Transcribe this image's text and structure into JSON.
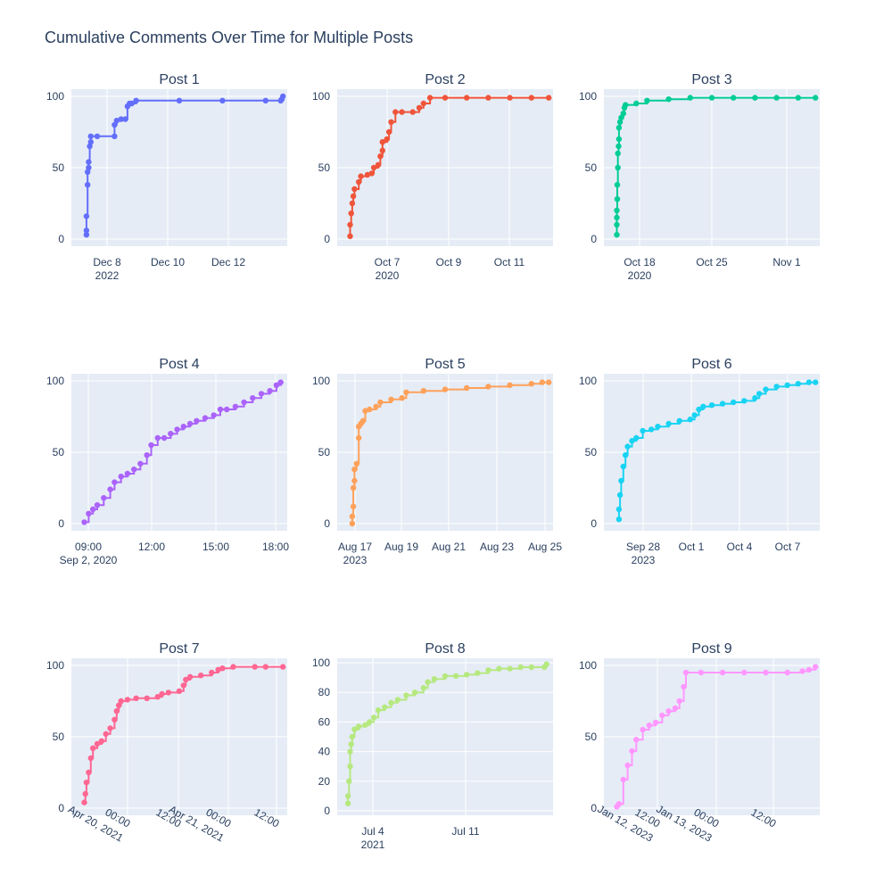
{
  "title": "Cumulative Comments Over Time for Multiple Posts",
  "chart_data": [
    {
      "type": "line",
      "title": "Post 1",
      "color": "#636efa",
      "xticks": [
        {
          "label": "Dec 8",
          "sub": "2022"
        },
        {
          "label": "Dec 10"
        },
        {
          "label": "Dec 12"
        }
      ],
      "yticks": [
        "0",
        "50",
        "100"
      ],
      "ylim": [
        -5,
        105
      ],
      "points": [
        [
          0.07,
          3
        ],
        [
          0.07,
          6
        ],
        [
          0.07,
          16
        ],
        [
          0.075,
          38
        ],
        [
          0.075,
          47
        ],
        [
          0.08,
          50
        ],
        [
          0.08,
          54
        ],
        [
          0.085,
          65
        ],
        [
          0.09,
          68
        ],
        [
          0.09,
          72
        ],
        [
          0.12,
          72
        ],
        [
          0.2,
          72
        ],
        [
          0.2,
          80
        ],
        [
          0.21,
          83
        ],
        [
          0.23,
          84
        ],
        [
          0.25,
          84
        ],
        [
          0.26,
          93
        ],
        [
          0.27,
          95
        ],
        [
          0.28,
          95
        ],
        [
          0.3,
          97
        ],
        [
          0.5,
          97
        ],
        [
          0.7,
          97
        ],
        [
          0.9,
          97
        ],
        [
          0.97,
          97
        ],
        [
          0.975,
          98
        ],
        [
          0.98,
          100
        ]
      ]
    },
    {
      "type": "line",
      "title": "Post 2",
      "color": "#ef553b",
      "xticks": [
        {
          "label": "Oct 7",
          "sub": "2020"
        },
        {
          "label": "Oct 9"
        },
        {
          "label": "Oct 11"
        }
      ],
      "yticks": [
        "0",
        "50",
        "100"
      ],
      "ylim": [
        -5,
        105
      ],
      "points": [
        [
          0.06,
          2
        ],
        [
          0.06,
          10
        ],
        [
          0.065,
          18
        ],
        [
          0.07,
          25
        ],
        [
          0.075,
          30
        ],
        [
          0.08,
          35
        ],
        [
          0.1,
          40
        ],
        [
          0.11,
          44
        ],
        [
          0.14,
          45
        ],
        [
          0.16,
          46
        ],
        [
          0.17,
          50
        ],
        [
          0.19,
          52
        ],
        [
          0.2,
          58
        ],
        [
          0.21,
          62
        ],
        [
          0.21,
          68
        ],
        [
          0.23,
          70
        ],
        [
          0.24,
          75
        ],
        [
          0.25,
          82
        ],
        [
          0.27,
          89
        ],
        [
          0.3,
          89
        ],
        [
          0.35,
          89
        ],
        [
          0.38,
          92
        ],
        [
          0.4,
          95
        ],
        [
          0.43,
          99
        ],
        [
          0.5,
          99
        ],
        [
          0.6,
          99
        ],
        [
          0.7,
          99
        ],
        [
          0.8,
          99
        ],
        [
          0.9,
          99
        ],
        [
          0.98,
          99
        ]
      ]
    },
    {
      "type": "line",
      "title": "Post 3",
      "color": "#00cc96",
      "xticks": [
        {
          "label": "Oct 18",
          "sub": "2020"
        },
        {
          "label": "Oct 25"
        },
        {
          "label": "Nov 1"
        }
      ],
      "yticks": [
        "0",
        "50",
        "100"
      ],
      "ylim": [
        -5,
        105
      ],
      "points": [
        [
          0.06,
          3
        ],
        [
          0.06,
          10
        ],
        [
          0.06,
          15
        ],
        [
          0.06,
          20
        ],
        [
          0.062,
          28
        ],
        [
          0.062,
          38
        ],
        [
          0.065,
          50
        ],
        [
          0.065,
          60
        ],
        [
          0.068,
          65
        ],
        [
          0.07,
          70
        ],
        [
          0.07,
          78
        ],
        [
          0.075,
          82
        ],
        [
          0.08,
          85
        ],
        [
          0.09,
          88
        ],
        [
          0.095,
          92
        ],
        [
          0.1,
          94
        ],
        [
          0.15,
          95
        ],
        [
          0.2,
          97
        ],
        [
          0.3,
          98
        ],
        [
          0.4,
          99
        ],
        [
          0.5,
          99
        ],
        [
          0.6,
          99
        ],
        [
          0.7,
          99
        ],
        [
          0.8,
          99
        ],
        [
          0.9,
          99
        ],
        [
          0.98,
          99
        ]
      ]
    },
    {
      "type": "line",
      "title": "Post 4",
      "color": "#ab63fa",
      "xticks": [
        {
          "label": "09:00",
          "sub": "Sep 2, 2020"
        },
        {
          "label": "12:00"
        },
        {
          "label": "15:00"
        },
        {
          "label": "18:00"
        }
      ],
      "yticks": [
        "0",
        "50",
        "100"
      ],
      "ylim": [
        -5,
        105
      ],
      "points": [
        [
          0.06,
          1
        ],
        [
          0.08,
          7
        ],
        [
          0.1,
          10
        ],
        [
          0.12,
          13
        ],
        [
          0.15,
          18
        ],
        [
          0.18,
          24
        ],
        [
          0.2,
          29
        ],
        [
          0.23,
          33
        ],
        [
          0.26,
          35
        ],
        [
          0.29,
          38
        ],
        [
          0.32,
          42
        ],
        [
          0.35,
          48
        ],
        [
          0.37,
          55
        ],
        [
          0.4,
          60
        ],
        [
          0.43,
          60
        ],
        [
          0.46,
          63
        ],
        [
          0.49,
          66
        ],
        [
          0.52,
          68
        ],
        [
          0.55,
          70
        ],
        [
          0.58,
          72
        ],
        [
          0.62,
          74
        ],
        [
          0.66,
          76
        ],
        [
          0.69,
          80
        ],
        [
          0.72,
          80
        ],
        [
          0.76,
          82
        ],
        [
          0.8,
          85
        ],
        [
          0.84,
          88
        ],
        [
          0.88,
          91
        ],
        [
          0.92,
          93
        ],
        [
          0.95,
          97
        ],
        [
          0.97,
          99
        ]
      ]
    },
    {
      "type": "line",
      "title": "Post 5",
      "color": "#ffa15a",
      "xticks": [
        {
          "label": "Aug 17",
          "sub": "2023"
        },
        {
          "label": "Aug 19"
        },
        {
          "label": "Aug 21"
        },
        {
          "label": "Aug 23"
        },
        {
          "label": "Aug 25"
        }
      ],
      "yticks": [
        "0",
        "50",
        "100"
      ],
      "ylim": [
        -5,
        105
      ],
      "points": [
        [
          0.07,
          0
        ],
        [
          0.07,
          5
        ],
        [
          0.075,
          12
        ],
        [
          0.075,
          25
        ],
        [
          0.08,
          30
        ],
        [
          0.08,
          38
        ],
        [
          0.09,
          42
        ],
        [
          0.1,
          60
        ],
        [
          0.1,
          68
        ],
        [
          0.11,
          70
        ],
        [
          0.12,
          72
        ],
        [
          0.13,
          79
        ],
        [
          0.15,
          80
        ],
        [
          0.18,
          82
        ],
        [
          0.2,
          85
        ],
        [
          0.25,
          87
        ],
        [
          0.3,
          88
        ],
        [
          0.32,
          92
        ],
        [
          0.4,
          93
        ],
        [
          0.5,
          94
        ],
        [
          0.6,
          95
        ],
        [
          0.7,
          96
        ],
        [
          0.8,
          97
        ],
        [
          0.9,
          98
        ],
        [
          0.95,
          99
        ],
        [
          0.98,
          99
        ]
      ]
    },
    {
      "type": "line",
      "title": "Post 6",
      "color": "#19d3f3",
      "xticks": [
        {
          "label": "Sep 28",
          "sub": "2023"
        },
        {
          "label": "Oct 1"
        },
        {
          "label": "Oct 4"
        },
        {
          "label": "Oct 7"
        }
      ],
      "yticks": [
        "0",
        "50",
        "100"
      ],
      "ylim": [
        -5,
        105
      ],
      "points": [
        [
          0.07,
          3
        ],
        [
          0.07,
          10
        ],
        [
          0.075,
          20
        ],
        [
          0.08,
          30
        ],
        [
          0.09,
          40
        ],
        [
          0.1,
          48
        ],
        [
          0.11,
          54
        ],
        [
          0.13,
          58
        ],
        [
          0.15,
          60
        ],
        [
          0.18,
          65
        ],
        [
          0.22,
          66
        ],
        [
          0.25,
          68
        ],
        [
          0.3,
          70
        ],
        [
          0.35,
          72
        ],
        [
          0.4,
          73
        ],
        [
          0.42,
          76
        ],
        [
          0.44,
          80
        ],
        [
          0.46,
          82
        ],
        [
          0.5,
          83
        ],
        [
          0.55,
          84
        ],
        [
          0.6,
          85
        ],
        [
          0.65,
          86
        ],
        [
          0.7,
          88
        ],
        [
          0.72,
          91
        ],
        [
          0.75,
          94
        ],
        [
          0.8,
          96
        ],
        [
          0.85,
          97
        ],
        [
          0.9,
          98
        ],
        [
          0.95,
          99
        ],
        [
          0.98,
          99
        ]
      ]
    },
    {
      "type": "line",
      "title": "Post 7",
      "color": "#ff6692",
      "xticks": [
        {
          "label": "00:00",
          "sub": "Apr 20, 2021"
        },
        {
          "label": "12:00"
        },
        {
          "label": "00:00",
          "sub": "Apr 21, 2021"
        },
        {
          "label": "12:00"
        }
      ],
      "yticks": [
        "0",
        "50",
        "100"
      ],
      "ylim": [
        -5,
        105
      ],
      "points": [
        [
          0.06,
          4
        ],
        [
          0.065,
          10
        ],
        [
          0.07,
          18
        ],
        [
          0.08,
          25
        ],
        [
          0.09,
          35
        ],
        [
          0.1,
          42
        ],
        [
          0.12,
          45
        ],
        [
          0.14,
          47
        ],
        [
          0.16,
          52
        ],
        [
          0.18,
          56
        ],
        [
          0.2,
          62
        ],
        [
          0.21,
          68
        ],
        [
          0.22,
          72
        ],
        [
          0.23,
          75
        ],
        [
          0.26,
          76
        ],
        [
          0.3,
          77
        ],
        [
          0.35,
          77
        ],
        [
          0.4,
          78
        ],
        [
          0.42,
          80
        ],
        [
          0.45,
          81
        ],
        [
          0.5,
          82
        ],
        [
          0.52,
          86
        ],
        [
          0.53,
          90
        ],
        [
          0.55,
          92
        ],
        [
          0.6,
          93
        ],
        [
          0.65,
          95
        ],
        [
          0.68,
          97
        ],
        [
          0.7,
          98
        ],
        [
          0.75,
          99
        ],
        [
          0.85,
          99
        ],
        [
          0.9,
          99
        ],
        [
          0.98,
          99
        ]
      ]
    },
    {
      "type": "line",
      "title": "Post 8",
      "color": "#b6e880",
      "xticks": [
        {
          "label": "Jul 4",
          "sub": "2021"
        },
        {
          "label": "Jul 11"
        }
      ],
      "yticks": [
        "0",
        "20",
        "40",
        "60",
        "80",
        "100"
      ],
      "ylim": [
        -3,
        103
      ],
      "points": [
        [
          0.05,
          5
        ],
        [
          0.05,
          10
        ],
        [
          0.055,
          20
        ],
        [
          0.06,
          30
        ],
        [
          0.06,
          40
        ],
        [
          0.065,
          45
        ],
        [
          0.07,
          50
        ],
        [
          0.08,
          55
        ],
        [
          0.1,
          57
        ],
        [
          0.13,
          58
        ],
        [
          0.15,
          60
        ],
        [
          0.17,
          63
        ],
        [
          0.19,
          68
        ],
        [
          0.22,
          70
        ],
        [
          0.25,
          73
        ],
        [
          0.28,
          75
        ],
        [
          0.32,
          78
        ],
        [
          0.36,
          80
        ],
        [
          0.4,
          83
        ],
        [
          0.42,
          87
        ],
        [
          0.45,
          89
        ],
        [
          0.5,
          91
        ],
        [
          0.55,
          91
        ],
        [
          0.6,
          92
        ],
        [
          0.65,
          93
        ],
        [
          0.7,
          95
        ],
        [
          0.75,
          96
        ],
        [
          0.8,
          96
        ],
        [
          0.85,
          97
        ],
        [
          0.9,
          97
        ],
        [
          0.96,
          97
        ],
        [
          0.97,
          99
        ]
      ]
    },
    {
      "type": "line",
      "title": "Post 9",
      "color": "#ff97ff",
      "xticks": [
        {
          "label": "12:00",
          "sub": "Jan 12, 2023"
        },
        {
          "label": "00:00",
          "sub": "Jan 13, 2023"
        },
        {
          "label": "12:00"
        }
      ],
      "yticks": [
        "0",
        "50",
        "100"
      ],
      "ylim": [
        -5,
        105
      ],
      "points": [
        [
          0.06,
          1
        ],
        [
          0.07,
          3
        ],
        [
          0.09,
          20
        ],
        [
          0.11,
          30
        ],
        [
          0.13,
          40
        ],
        [
          0.15,
          48
        ],
        [
          0.18,
          55
        ],
        [
          0.21,
          58
        ],
        [
          0.24,
          60
        ],
        [
          0.27,
          65
        ],
        [
          0.3,
          68
        ],
        [
          0.33,
          70
        ],
        [
          0.35,
          75
        ],
        [
          0.37,
          85
        ],
        [
          0.38,
          95
        ],
        [
          0.45,
          95
        ],
        [
          0.55,
          95
        ],
        [
          0.65,
          95
        ],
        [
          0.75,
          95
        ],
        [
          0.85,
          95
        ],
        [
          0.92,
          96
        ],
        [
          0.95,
          97
        ],
        [
          0.98,
          99
        ]
      ]
    }
  ]
}
